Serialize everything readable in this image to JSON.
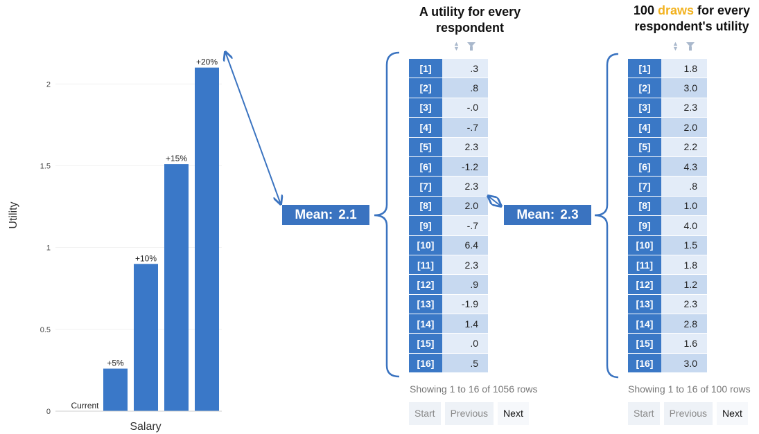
{
  "chart_data": {
    "type": "bar",
    "categories": [
      "Current",
      "+5%",
      "+10%",
      "+15%",
      "+20%"
    ],
    "values": [
      0,
      0.26,
      0.9,
      1.51,
      2.1
    ],
    "xlabel": "Salary",
    "ylabel": "Utility",
    "ylim": [
      0,
      2.2
    ],
    "yticks": [
      "0",
      "0.5",
      "1",
      "1.5",
      "2"
    ],
    "bar_color": "#3a78c8",
    "grid": true,
    "legend": "none"
  },
  "table1": {
    "title_line1": "A utility for every",
    "title_line2": "respondent",
    "rows": [
      {
        "idx": "[1]",
        "val": ".3"
      },
      {
        "idx": "[2]",
        "val": ".8"
      },
      {
        "idx": "[3]",
        "val": "-.0"
      },
      {
        "idx": "[4]",
        "val": "-.7"
      },
      {
        "idx": "[5]",
        "val": "2.3"
      },
      {
        "idx": "[6]",
        "val": "-1.2"
      },
      {
        "idx": "[7]",
        "val": "2.3"
      },
      {
        "idx": "[8]",
        "val": "2.0"
      },
      {
        "idx": "[9]",
        "val": "-.7"
      },
      {
        "idx": "[10]",
        "val": "6.4"
      },
      {
        "idx": "[11]",
        "val": "2.3"
      },
      {
        "idx": "[12]",
        "val": ".9"
      },
      {
        "idx": "[13]",
        "val": "-1.9"
      },
      {
        "idx": "[14]",
        "val": "1.4"
      },
      {
        "idx": "[15]",
        "val": ".0"
      },
      {
        "idx": "[16]",
        "val": ".5"
      }
    ],
    "info": "Showing 1 to 16 of 1056 rows",
    "pager": {
      "start": "Start",
      "previous": "Previous",
      "next": "Next"
    },
    "mean_label": "Mean:",
    "mean_value": "2.1"
  },
  "table2": {
    "title_number": "100",
    "title_highlight": "draws",
    "title_rest": "for every",
    "title_line2": "respondent's utility",
    "rows": [
      {
        "idx": "[1]",
        "val": "1.8"
      },
      {
        "idx": "[2]",
        "val": "3.0"
      },
      {
        "idx": "[3]",
        "val": "2.3"
      },
      {
        "idx": "[4]",
        "val": "2.0"
      },
      {
        "idx": "[5]",
        "val": "2.2"
      },
      {
        "idx": "[6]",
        "val": "4.3"
      },
      {
        "idx": "[7]",
        "val": ".8"
      },
      {
        "idx": "[8]",
        "val": "1.0"
      },
      {
        "idx": "[9]",
        "val": "4.0"
      },
      {
        "idx": "[10]",
        "val": "1.5"
      },
      {
        "idx": "[11]",
        "val": "1.8"
      },
      {
        "idx": "[12]",
        "val": "1.2"
      },
      {
        "idx": "[13]",
        "val": "2.3"
      },
      {
        "idx": "[14]",
        "val": "2.8"
      },
      {
        "idx": "[15]",
        "val": "1.6"
      },
      {
        "idx": "[16]",
        "val": "3.0"
      }
    ],
    "info": "Showing 1 to 16 of 100 rows",
    "pager": {
      "start": "Start",
      "previous": "Previous",
      "next": "Next"
    },
    "mean_label": "Mean:",
    "mean_value": "2.3"
  },
  "colors": {
    "accent": "#3a78c6",
    "highlight": "#f2b21f",
    "row_light": "#e3ecf8",
    "row_dark": "#c7d9f0"
  }
}
